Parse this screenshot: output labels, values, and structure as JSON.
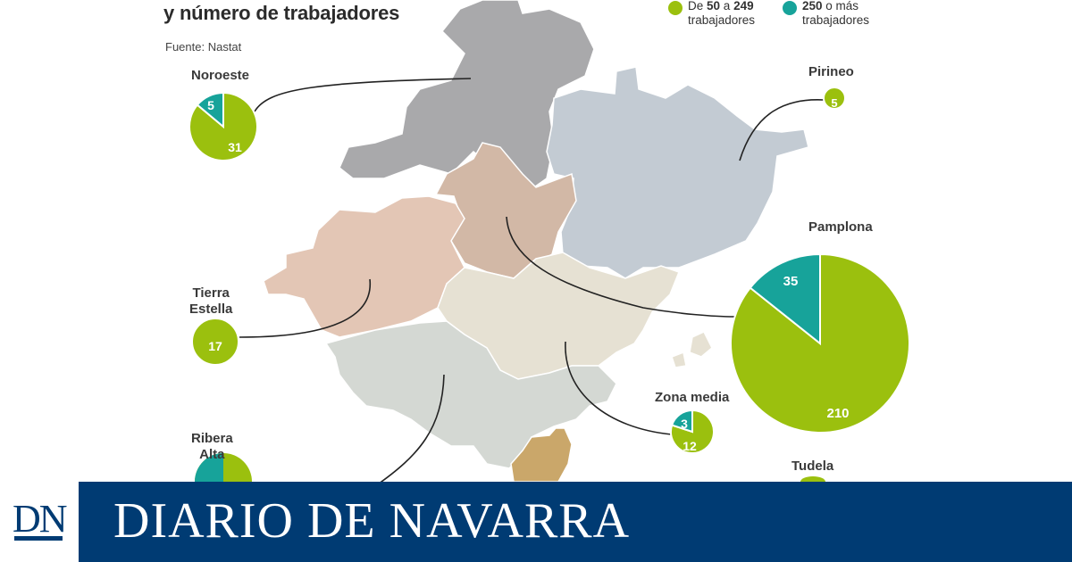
{
  "title_line1": "",
  "title_line2": "y número de trabajadores",
  "source": "Fuente: Nastat",
  "legend": {
    "item1_prefix": "De ",
    "item1_bold1": "50",
    "item1_mid": " a ",
    "item1_bold2": "249",
    "item1_line2": "trabajadores",
    "item1_color": "#9bc00e",
    "item2_bold": "250",
    "item2_rest": " o más",
    "item2_line2": "trabajadores",
    "item2_color": "#17a39a"
  },
  "colors": {
    "small": "#9bc00e",
    "large": "#17a39a",
    "noroeste_area": "#a9a9ab",
    "pirineo_area": "#c3cbd3",
    "tierra_estella_area": "#e3c6b5",
    "pamplona_area": "#d2b8a6",
    "zona_media_area": "#e6e1d3",
    "ribera_alta_area": "#d4d8d3",
    "tudela_area": "#caa76a"
  },
  "regions": {
    "noroeste": {
      "name": "Noroeste",
      "small": 31,
      "large": 5
    },
    "pirineo": {
      "name": "Pirineo",
      "small": 5,
      "large": 0
    },
    "pamplona": {
      "name": "Pamplona",
      "small": 210,
      "large": 35
    },
    "tierra_estella": {
      "name_line1": "Tierra",
      "name_line2": "Estella",
      "small": 17,
      "large": 0
    },
    "zona_media": {
      "name": "Zona media",
      "small": 12,
      "large": 3
    },
    "ribera_alta": {
      "name_line1": "Ribera",
      "name_line2": "Alta"
    },
    "tudela": {
      "name": "Tudela"
    }
  },
  "banner": {
    "logo": "DN",
    "text": "DIARIO DE NAVARRA"
  }
}
